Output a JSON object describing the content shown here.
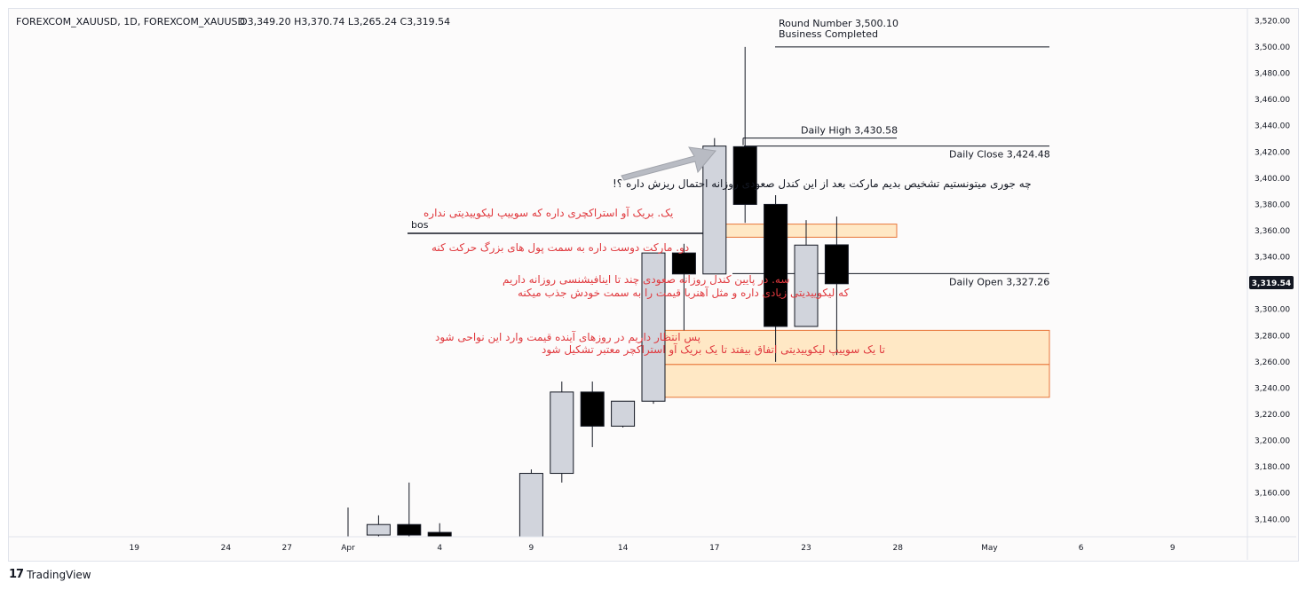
{
  "header": {
    "symbol": "FOREXCOM_XAUUSD, 1D, FOREXCOM_XAUUSD",
    "ohlc": "O3,349.20  H3,370.74  L3,265.24  C3,319.54"
  },
  "price_badge": "3,319.54",
  "brand": {
    "logo": "17",
    "name": "TradingView"
  },
  "colors": {
    "bull_fill": "#d1d4dc",
    "bear_fill": "#000000",
    "zone_fill": "#ffe4b8",
    "zone_border": "#e8763a",
    "annotation_red": "#e0393e"
  },
  "chart_data": {
    "type": "candlestick",
    "ylim": [
      3126,
      3525
    ],
    "yticks": [
      "3,520.00",
      "3,500.00",
      "3,480.00",
      "3,460.00",
      "3,440.00",
      "3,420.00",
      "3,400.00",
      "3,380.00",
      "3,360.00",
      "3,340.00",
      "3,320.00",
      "3,300.00",
      "3,280.00",
      "3,260.00",
      "3,240.00",
      "3,220.00",
      "3,200.00",
      "3,180.00",
      "3,160.00",
      "3,140.00"
    ],
    "xticks": [
      {
        "label": "19",
        "i": -1
      },
      {
        "label": "24",
        "i": 2
      },
      {
        "label": "27",
        "i": 4
      },
      {
        "label": "Apr",
        "i": 6
      },
      {
        "label": "4",
        "i": 9
      },
      {
        "label": "9",
        "i": 12
      },
      {
        "label": "14",
        "i": 15
      },
      {
        "label": "17",
        "i": 18
      },
      {
        "label": "23",
        "i": 21
      },
      {
        "label": "28",
        "i": 24
      },
      {
        "label": "May",
        "i": 27
      },
      {
        "label": "6",
        "i": 30
      },
      {
        "label": "9",
        "i": 33
      }
    ],
    "candles": [
      {
        "i": 6,
        "o": 3120,
        "h": 3149,
        "l": 3110,
        "c": 3118
      },
      {
        "i": 7,
        "o": 3128,
        "h": 3143,
        "l": 3120,
        "c": 3136
      },
      {
        "i": 8,
        "o": 3136,
        "h": 3168,
        "l": 3115,
        "c": 3128
      },
      {
        "i": 9,
        "o": 3130,
        "h": 3137,
        "l": 3100,
        "c": 3115
      },
      {
        "i": 12,
        "o": 3124,
        "h": 3178,
        "l": 3115,
        "c": 3175
      },
      {
        "i": 13,
        "o": 3175,
        "h": 3245,
        "l": 3168,
        "c": 3237
      },
      {
        "i": 14,
        "o": 3237,
        "h": 3245,
        "l": 3195,
        "c": 3211
      },
      {
        "i": 15,
        "o": 3211,
        "h": 3230,
        "l": 3210,
        "c": 3230
      },
      {
        "i": 16,
        "o": 3230,
        "h": 3343,
        "l": 3228,
        "c": 3343
      },
      {
        "i": 17,
        "o": 3343,
        "h": 3350,
        "l": 3284,
        "c": 3327
      },
      {
        "i": 18,
        "o": 3327,
        "h": 3430.58,
        "l": 3327,
        "c": 3424.48
      },
      {
        "i": 19,
        "o": 3424,
        "h": 3500.1,
        "l": 3366,
        "c": 3380
      },
      {
        "i": 20,
        "o": 3380,
        "h": 3387,
        "l": 3260,
        "c": 3287
      },
      {
        "i": 21,
        "o": 3287,
        "h": 3368,
        "l": 3287,
        "c": 3349
      },
      {
        "i": 22,
        "o": 3349.2,
        "h": 3370.74,
        "l": 3265.24,
        "c": 3319.54
      }
    ],
    "levels": [
      {
        "label": "Round Number 3,500.10",
        "label2": "Business Completed",
        "price": 3500.1
      },
      {
        "label": "Daily High 3,430.58",
        "price": 3430.58
      },
      {
        "label": "Daily Close 3,424.48",
        "price": 3424.48
      },
      {
        "label": "Daily Open 3,327.26",
        "price": 3327.26
      },
      {
        "label": "bos",
        "price": 3358
      }
    ],
    "zones": [
      {
        "top": 3365,
        "bottom": 3355
      },
      {
        "top": 3284,
        "bottom": 3258
      },
      {
        "top": 3258,
        "bottom": 3233
      }
    ]
  },
  "annotations": {
    "question": "چه جوری میتونستیم تشخیص بدیم مارکت بعد از این کندل صعودی روزانه احتمال ریزش داره ؟!",
    "point1": "یک. بریک آو استراکچری داره که سوییپ لیکوییدیتی نداره",
    "point2": "دو. مارکت دوست داره به سمت پول های بزرگ حرکت کنه",
    "point3_line1": "سه. در پایین کندل روزانه صعودی چند تا اینافیشنسی روزانه داریم",
    "point3_line2": "که لیکوییدیتی زیادی داره و مثل آهنربا قیمت را به سمت خودش جذب میکنه",
    "point4_line1": "پس انتظار داریم در روزهای آینده قیمت وارد این نواحی شود",
    "point4_line2": "تا یک سوییپ لیکوییدیتی اتفاق بیفتد تا یک بریک آو استراکچر معتبر تشکیل شود"
  }
}
